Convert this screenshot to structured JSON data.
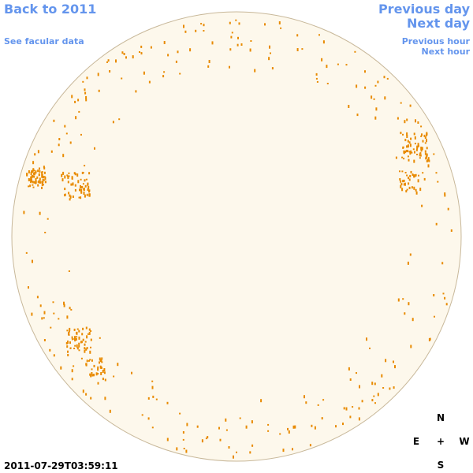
{
  "navigation": {
    "back": "Back to 2011",
    "facular": "See facular data",
    "previous_day": "Previous day",
    "next_day": "Next day",
    "previous_hour": "Previous hour",
    "next_hour": "Next hour"
  },
  "timestamp": "2011-07-29T03:59:11",
  "compass": {
    "north": "N",
    "east": "E",
    "center": "+",
    "west": "W",
    "south": "S"
  }
}
